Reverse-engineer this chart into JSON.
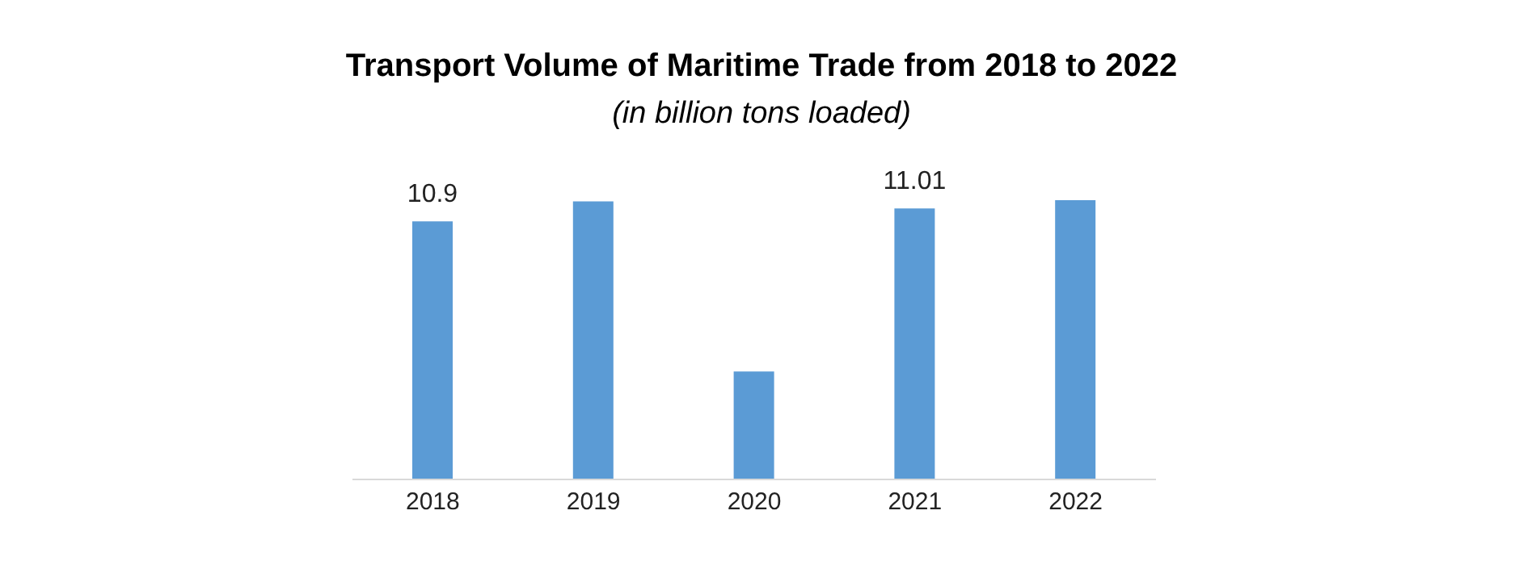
{
  "chart_data": {
    "type": "bar",
    "title": "Transport Volume of Maritime Trade from 2018 to 2022",
    "subtitle": "(in billion tons loaded)",
    "categories": [
      "2018",
      "2019",
      "2020",
      "2021",
      "2022"
    ],
    "values": [
      10.9,
      11.07,
      9.62,
      11.01,
      11.08
    ],
    "value_labels": [
      "10.9",
      null,
      null,
      "11.01",
      null
    ],
    "color": "#5b9bd5",
    "ylim": [
      8.7,
      11.08
    ]
  }
}
